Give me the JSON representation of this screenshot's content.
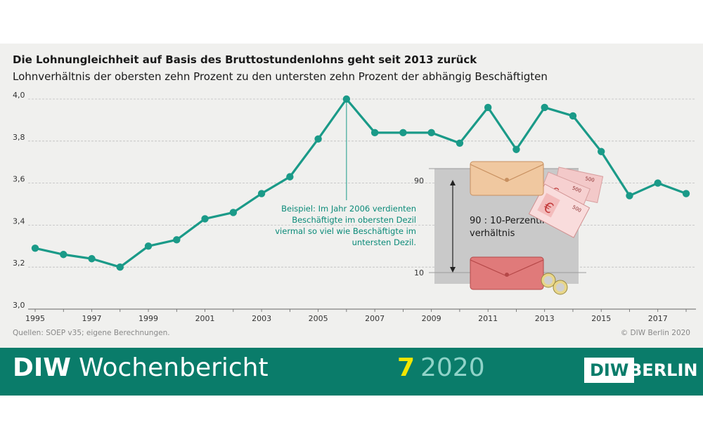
{
  "header": {
    "title": "Die Lohnungleichheit auf Basis des Bruttostundenlohns geht seit 2013 zurück",
    "subtitle": "Lohnverhältnis der obersten zehn Prozent zu den untersten zehn Prozent der abhängig Beschäftigten"
  },
  "chart_data": {
    "type": "line",
    "title": "Die Lohnungleichheit auf Basis des Bruttostundenlohns geht seit 2013 zurück",
    "subtitle": "Lohnverhältnis der obersten zehn Prozent zu den untersten zehn Prozent der abhängig Beschäftigten",
    "xlabel": "",
    "ylabel": "",
    "x": [
      1995,
      1996,
      1997,
      1998,
      1999,
      2000,
      2001,
      2002,
      2003,
      2004,
      2005,
      2006,
      2007,
      2008,
      2009,
      2010,
      2011,
      2012,
      2013,
      2014,
      2015,
      2016,
      2017,
      2018
    ],
    "values": [
      3.29,
      3.26,
      3.24,
      3.2,
      3.3,
      3.33,
      3.43,
      3.46,
      3.55,
      3.63,
      3.81,
      4.0,
      3.84,
      3.84,
      3.84,
      3.79,
      3.96,
      3.76,
      3.96,
      3.92,
      3.75,
      3.54,
      3.6,
      3.55
    ],
    "x_tick_labels": [
      "1995",
      "1997",
      "1999",
      "2001",
      "2003",
      "2005",
      "2007",
      "2009",
      "2011",
      "2013",
      "2015",
      "2017"
    ],
    "y_tick_labels": [
      "3,0",
      "3,2",
      "3,4",
      "3,6",
      "3,8",
      "4,0"
    ],
    "ylim": [
      3.0,
      4.0
    ],
    "xlim": [
      1995,
      2018
    ],
    "grid": true,
    "legend": "none",
    "line_color": "#1a9a88",
    "annotation": {
      "x": 2006,
      "lines": [
        "Beispiel: Im Jahr 2006 verdienten",
        "Beschäftigte im obersten Dezil",
        "viermal so viel wie Beschäftigte im",
        "untersten Dezil."
      ]
    },
    "inset": {
      "top_label": "90",
      "bottom_label": "10",
      "ratio_lines": [
        "90 : 10-Perzentil-",
        "verhältnis"
      ],
      "banknote_label": "500",
      "currency_symbol": "€"
    }
  },
  "source": "Quellen: SOEP v35; eigene Berechnungen.",
  "copyright": "© DIW Berlin 2020",
  "footer": {
    "brand_bold": "DIW",
    "brand_name": "Wochenbericht",
    "issue_number": "7",
    "issue_year": "2020",
    "logo_diw": "DIW",
    "logo_berlin": "BERLIN"
  },
  "colors": {
    "line": "#1a9a88",
    "annotation": "#0a8a78",
    "footer_bg": "#0a7c6a",
    "issue_number": "#f2e600",
    "issue_year": "#8fd3c8",
    "panel_bg": "#f0f0ee"
  }
}
